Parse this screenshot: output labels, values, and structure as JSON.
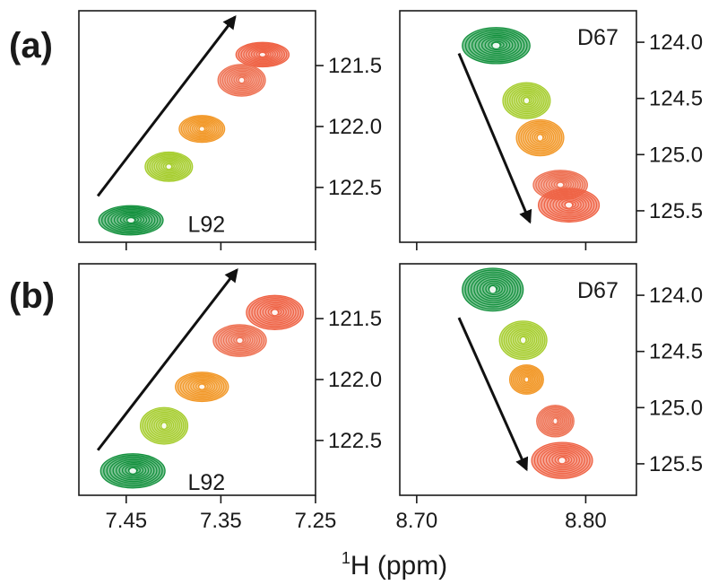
{
  "figure": {
    "x_axis_title": {
      "superscript": "1",
      "main": "H (ppm)"
    }
  },
  "colors": {
    "green": "#14913e",
    "yellow_green": "#a6cd2e",
    "orange": "#f2992a",
    "salmon": "#ee7355",
    "red_orange": "#ef6345",
    "white": "#ffffff"
  },
  "chart_data": [
    {
      "panel": "(a)",
      "side": "left",
      "type": "contour",
      "xlim": [
        7.25,
        7.5
      ],
      "ylim": [
        122.95,
        121.05
      ],
      "x_ticks": [
        7.45,
        7.35,
        7.25
      ],
      "x_tick_labels": false,
      "y_ticks": [
        121.5,
        122.0,
        122.5
      ],
      "y_tick_labels": [
        "121.5",
        "122.0",
        "122.5"
      ],
      "residue_label": {
        "text": "L92",
        "x": 7.385,
        "y": 122.8
      },
      "arrow": {
        "from": [
          7.48,
          122.57
        ],
        "to": [
          7.335,
          121.1
        ]
      },
      "peaks": [
        {
          "x": 7.445,
          "y": 122.77,
          "rx": 0.034,
          "ry": 0.12,
          "color": "green"
        },
        {
          "x": 7.405,
          "y": 122.33,
          "rx": 0.025,
          "ry": 0.12,
          "color": "yellow_green"
        },
        {
          "x": 7.37,
          "y": 122.02,
          "rx": 0.024,
          "ry": 0.11,
          "color": "orange"
        },
        {
          "x": 7.328,
          "y": 121.62,
          "rx": 0.025,
          "ry": 0.13,
          "color": "salmon"
        },
        {
          "x": 7.306,
          "y": 121.41,
          "rx": 0.028,
          "ry": 0.1,
          "color": "red_orange"
        }
      ]
    },
    {
      "panel": "(a)",
      "side": "right",
      "type": "contour",
      "xlim": [
        8.83,
        8.69
      ],
      "ylim": [
        125.78,
        123.72
      ],
      "x_ticks": [
        8.8,
        8.7
      ],
      "x_tick_labels": false,
      "y_ticks": [
        124.0,
        124.5,
        125.0,
        125.5
      ],
      "y_tick_labels": [
        "124.0",
        "124.5",
        "125.0",
        "125.5"
      ],
      "residue_label": {
        "text": "D67",
        "x": 8.795,
        "y": 123.95
      },
      "arrow": {
        "from": [
          8.725,
          124.1
        ],
        "to": [
          8.767,
          125.6
        ]
      },
      "peaks": [
        {
          "x": 8.747,
          "y": 124.03,
          "rx": 0.02,
          "ry": 0.16,
          "color": "green"
        },
        {
          "x": 8.765,
          "y": 124.52,
          "rx": 0.014,
          "ry": 0.16,
          "color": "yellow_green"
        },
        {
          "x": 8.773,
          "y": 124.85,
          "rx": 0.014,
          "ry": 0.16,
          "color": "orange"
        },
        {
          "x": 8.785,
          "y": 125.27,
          "rx": 0.016,
          "ry": 0.13,
          "color": "salmon"
        },
        {
          "x": 8.79,
          "y": 125.45,
          "rx": 0.018,
          "ry": 0.15,
          "color": "red_orange"
        }
      ]
    },
    {
      "panel": "(b)",
      "side": "left",
      "type": "contour",
      "xlim": [
        7.25,
        7.5
      ],
      "ylim": [
        122.95,
        121.05
      ],
      "x_ticks": [
        7.45,
        7.35,
        7.25
      ],
      "x_tick_labels": [
        "7.45",
        "7.35",
        "7.25"
      ],
      "y_ticks": [
        121.5,
        122.0,
        122.5
      ],
      "y_tick_labels": [
        "121.5",
        "122.0",
        "122.5"
      ],
      "residue_label": {
        "text": "L92",
        "x": 7.385,
        "y": 122.84
      },
      "arrow": {
        "from": [
          7.48,
          122.58
        ],
        "to": [
          7.333,
          121.1
        ]
      },
      "peaks": [
        {
          "x": 7.443,
          "y": 122.75,
          "rx": 0.034,
          "ry": 0.14,
          "color": "green"
        },
        {
          "x": 7.41,
          "y": 122.38,
          "rx": 0.025,
          "ry": 0.15,
          "color": "yellow_green"
        },
        {
          "x": 7.37,
          "y": 122.06,
          "rx": 0.028,
          "ry": 0.12,
          "color": "orange"
        },
        {
          "x": 7.33,
          "y": 121.68,
          "rx": 0.028,
          "ry": 0.13,
          "color": "salmon"
        },
        {
          "x": 7.293,
          "y": 121.45,
          "rx": 0.03,
          "ry": 0.14,
          "color": "red_orange"
        }
      ]
    },
    {
      "panel": "(b)",
      "side": "right",
      "type": "contour",
      "xlim": [
        8.83,
        8.69
      ],
      "ylim": [
        125.78,
        123.72
      ],
      "x_ticks": [
        8.8,
        8.7
      ],
      "x_tick_labels": [
        "8.80",
        "8.70"
      ],
      "y_ticks": [
        124.0,
        124.5,
        125.0,
        125.5
      ],
      "y_tick_labels": [
        "124.0",
        "124.5",
        "125.0",
        "125.5"
      ],
      "residue_label": {
        "text": "D67",
        "x": 8.795,
        "y": 123.95
      },
      "arrow": {
        "from": [
          8.725,
          124.2
        ],
        "to": [
          8.765,
          125.55
        ]
      },
      "peaks": [
        {
          "x": 8.745,
          "y": 123.95,
          "rx": 0.018,
          "ry": 0.19,
          "color": "green"
        },
        {
          "x": 8.763,
          "y": 124.4,
          "rx": 0.014,
          "ry": 0.17,
          "color": "yellow_green"
        },
        {
          "x": 8.765,
          "y": 124.75,
          "rx": 0.01,
          "ry": 0.13,
          "color": "orange"
        },
        {
          "x": 8.782,
          "y": 125.12,
          "rx": 0.011,
          "ry": 0.14,
          "color": "salmon"
        },
        {
          "x": 8.786,
          "y": 125.47,
          "rx": 0.018,
          "ry": 0.16,
          "color": "red_orange"
        }
      ]
    }
  ]
}
